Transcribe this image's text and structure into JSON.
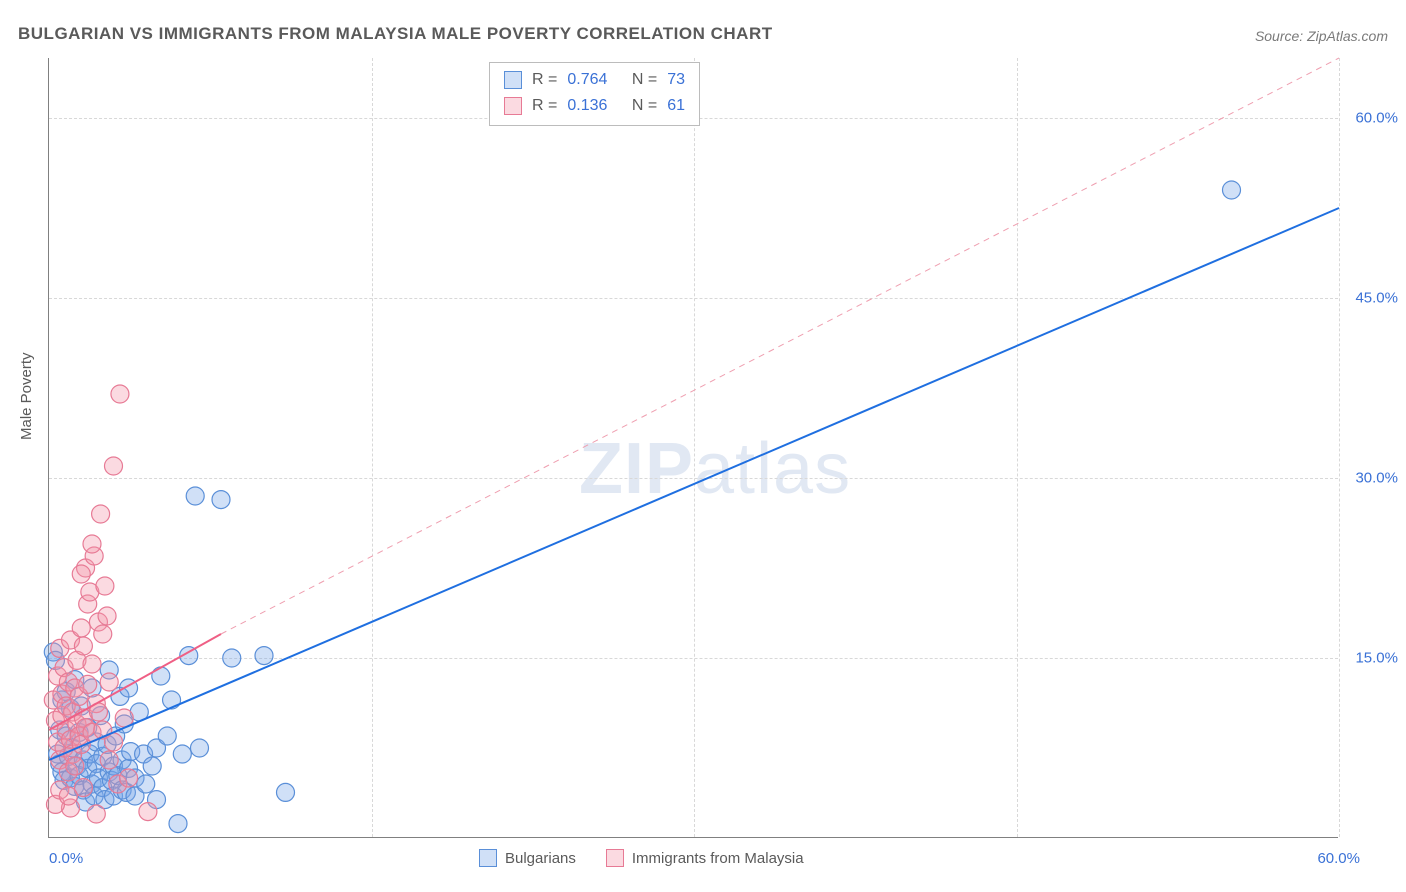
{
  "title": "BULGARIAN VS IMMIGRANTS FROM MALAYSIA MALE POVERTY CORRELATION CHART",
  "source": "Source: ZipAtlas.com",
  "y_axis_label": "Male Poverty",
  "watermark_bold": "ZIP",
  "watermark_rest": "atlas",
  "chart": {
    "type": "scatter",
    "background_color": "#ffffff",
    "grid_color": "#d8d8d8",
    "axis_color": "#808080",
    "tick_label_color": "#3a71d6",
    "tick_fontsize": 15,
    "xlim": [
      0,
      60
    ],
    "ylim": [
      0,
      65
    ],
    "yticks": [
      15,
      30,
      45,
      60
    ],
    "ytick_labels": [
      "15.0%",
      "30.0%",
      "45.0%",
      "60.0%"
    ],
    "xticks": [
      0,
      60
    ],
    "xtick_labels": [
      "0.0%",
      "60.0%"
    ],
    "xgrid_at": [
      15,
      30,
      45,
      60
    ],
    "series": [
      {
        "key": "bulgarians",
        "label": "Bulgarians",
        "marker_fill": "rgba(120,165,232,0.35)",
        "marker_stroke": "#5a8fd8",
        "marker_radius": 9,
        "trend": {
          "color": "#1f6fe0",
          "width": 2,
          "dash": "none",
          "x1": 0,
          "y1": 6.5,
          "x2": 60,
          "y2": 52.5
        },
        "trend_extrapolate": null,
        "R": "0.764",
        "N": "73",
        "points": [
          [
            0.2,
            15.5
          ],
          [
            0.3,
            14.8
          ],
          [
            0.4,
            7.0
          ],
          [
            0.5,
            6.2
          ],
          [
            0.5,
            9.0
          ],
          [
            0.6,
            5.5
          ],
          [
            0.6,
            11.5
          ],
          [
            0.7,
            4.8
          ],
          [
            0.8,
            12.2
          ],
          [
            0.8,
            8.5
          ],
          [
            0.9,
            6.8
          ],
          [
            1.0,
            5.0
          ],
          [
            1.0,
            10.8
          ],
          [
            1.1,
            7.5
          ],
          [
            1.2,
            4.3
          ],
          [
            1.2,
            13.2
          ],
          [
            1.3,
            6.0
          ],
          [
            1.4,
            8.8
          ],
          [
            1.4,
            5.2
          ],
          [
            1.5,
            11.0
          ],
          [
            1.6,
            6.5
          ],
          [
            1.6,
            4.0
          ],
          [
            1.7,
            3.0
          ],
          [
            1.8,
            9.2
          ],
          [
            1.8,
            5.8
          ],
          [
            1.9,
            7.0
          ],
          [
            2.0,
            4.5
          ],
          [
            2.0,
            12.5
          ],
          [
            2.1,
            3.5
          ],
          [
            2.2,
            6.2
          ],
          [
            2.2,
            8.0
          ],
          [
            2.3,
            5.0
          ],
          [
            2.4,
            10.2
          ],
          [
            2.5,
            4.2
          ],
          [
            2.5,
            6.8
          ],
          [
            2.6,
            3.2
          ],
          [
            2.7,
            7.8
          ],
          [
            2.8,
            5.5
          ],
          [
            2.8,
            14.0
          ],
          [
            2.9,
            4.8
          ],
          [
            3.0,
            6.0
          ],
          [
            3.0,
            3.5
          ],
          [
            3.1,
            8.5
          ],
          [
            3.2,
            5.2
          ],
          [
            3.3,
            11.8
          ],
          [
            3.4,
            4.0
          ],
          [
            3.4,
            6.5
          ],
          [
            3.6,
            3.8
          ],
          [
            3.7,
            12.5
          ],
          [
            3.7,
            5.8
          ],
          [
            3.8,
            7.2
          ],
          [
            4.0,
            5.0
          ],
          [
            4.0,
            3.5
          ],
          [
            4.2,
            10.5
          ],
          [
            4.4,
            7.0
          ],
          [
            4.5,
            4.5
          ],
          [
            4.8,
            6.0
          ],
          [
            5.0,
            3.2
          ],
          [
            5.0,
            7.5
          ],
          [
            5.2,
            13.5
          ],
          [
            5.5,
            8.5
          ],
          [
            5.7,
            11.5
          ],
          [
            6.0,
            1.2
          ],
          [
            6.2,
            7.0
          ],
          [
            6.5,
            15.2
          ],
          [
            6.8,
            28.5
          ],
          [
            7.0,
            7.5
          ],
          [
            8.0,
            28.2
          ],
          [
            8.5,
            15.0
          ],
          [
            10.0,
            15.2
          ],
          [
            11.0,
            3.8
          ],
          [
            55.0,
            54.0
          ],
          [
            3.5,
            9.5
          ]
        ]
      },
      {
        "key": "malaysia",
        "label": "Immigrants from Malaysia",
        "marker_fill": "rgba(244,150,170,0.35)",
        "marker_stroke": "#e77a95",
        "marker_radius": 9,
        "trend": {
          "color": "#ef5f85",
          "width": 2,
          "dash": "none",
          "x1": 0,
          "y1": 9.0,
          "x2": 8,
          "y2": 17.0
        },
        "trend_extrapolate": {
          "color": "#ef9fb0",
          "width": 1,
          "dash": "6,5",
          "x1": 8,
          "y1": 17.0,
          "x2": 60,
          "y2": 65.0
        },
        "R": "0.136",
        "N": "61",
        "points": [
          [
            0.2,
            11.5
          ],
          [
            0.3,
            9.8
          ],
          [
            0.4,
            13.5
          ],
          [
            0.4,
            8.0
          ],
          [
            0.5,
            6.5
          ],
          [
            0.5,
            15.8
          ],
          [
            0.6,
            10.2
          ],
          [
            0.6,
            12.0
          ],
          [
            0.7,
            7.5
          ],
          [
            0.7,
            14.2
          ],
          [
            0.8,
            9.0
          ],
          [
            0.8,
            11.0
          ],
          [
            0.9,
            5.5
          ],
          [
            0.9,
            13.0
          ],
          [
            1.0,
            8.2
          ],
          [
            1.0,
            16.5
          ],
          [
            1.1,
            10.5
          ],
          [
            1.1,
            7.0
          ],
          [
            1.2,
            12.5
          ],
          [
            1.2,
            6.0
          ],
          [
            1.3,
            9.5
          ],
          [
            1.3,
            14.8
          ],
          [
            1.4,
            8.5
          ],
          [
            1.4,
            11.8
          ],
          [
            1.5,
            17.5
          ],
          [
            1.5,
            7.8
          ],
          [
            1.6,
            10.0
          ],
          [
            1.6,
            16.0
          ],
          [
            1.7,
            22.5
          ],
          [
            1.7,
            9.2
          ],
          [
            1.8,
            19.5
          ],
          [
            1.8,
            12.8
          ],
          [
            1.9,
            20.5
          ],
          [
            2.0,
            8.8
          ],
          [
            2.0,
            14.5
          ],
          [
            2.1,
            23.5
          ],
          [
            2.2,
            2.0
          ],
          [
            2.2,
            11.2
          ],
          [
            2.3,
            18.0
          ],
          [
            2.4,
            27.0
          ],
          [
            2.5,
            17.0
          ],
          [
            2.5,
            9.0
          ],
          [
            2.6,
            21.0
          ],
          [
            2.7,
            18.5
          ],
          [
            2.8,
            13.0
          ],
          [
            3.0,
            31.0
          ],
          [
            3.0,
            8.0
          ],
          [
            3.2,
            4.5
          ],
          [
            3.3,
            37.0
          ],
          [
            3.5,
            10.0
          ],
          [
            3.7,
            5.0
          ],
          [
            4.6,
            2.2
          ],
          [
            1.0,
            2.5
          ],
          [
            0.3,
            2.8
          ],
          [
            0.5,
            4.0
          ],
          [
            2.8,
            6.5
          ],
          [
            1.6,
            4.2
          ],
          [
            0.9,
            3.5
          ],
          [
            2.0,
            24.5
          ],
          [
            1.5,
            22.0
          ],
          [
            2.3,
            10.5
          ]
        ]
      }
    ],
    "stats_box": {
      "border_color": "#bcbcbc",
      "R_label": "R =",
      "N_label": "N ="
    },
    "bottom_legend": {
      "items": [
        "bulgarians",
        "malaysia"
      ]
    }
  }
}
